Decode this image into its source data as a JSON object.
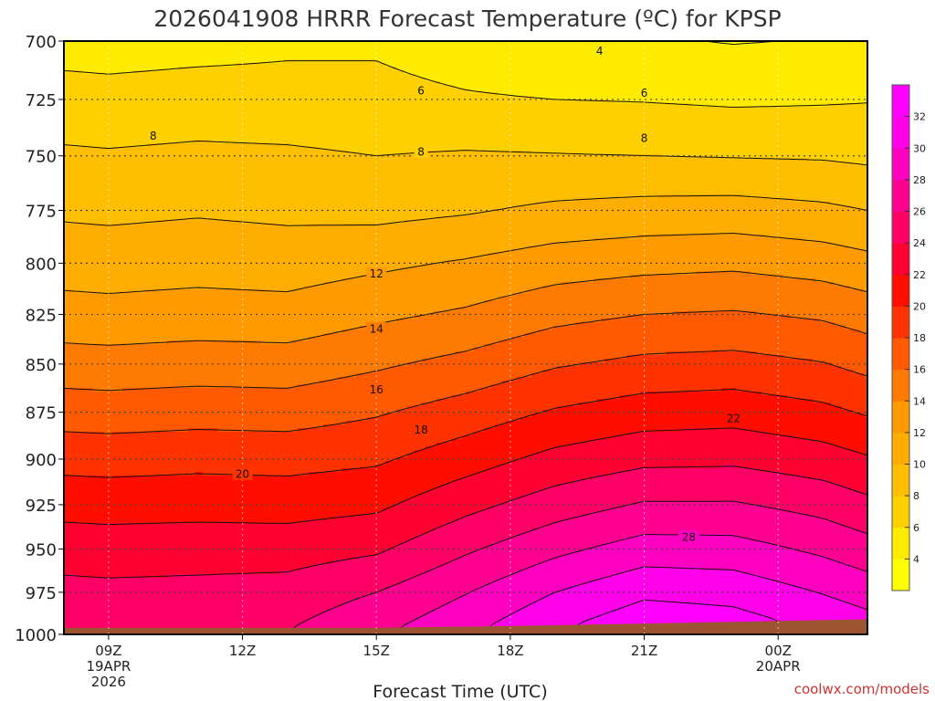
{
  "chart_data": {
    "type": "heatmap",
    "title": "2026041908 HRRR Forecast Temperature (ºC) for KPSP",
    "xlabel": "Forecast Time (UTC)",
    "ylabel": "",
    "credit": "coolwx.com/models",
    "y_scale": "log-pressure",
    "y_ticks": [
      "700",
      "725",
      "750",
      "775",
      "800",
      "825",
      "850",
      "875",
      "900",
      "925",
      "950",
      "975",
      "1000"
    ],
    "y_values": [
      700,
      725,
      750,
      775,
      800,
      825,
      850,
      875,
      900,
      925,
      950,
      975,
      1000
    ],
    "ylim": [
      1000,
      700
    ],
    "x_ticks": [
      {
        "hour": 9,
        "lines": [
          "09Z",
          "19APR",
          "2026"
        ]
      },
      {
        "hour": 12,
        "lines": [
          "12Z"
        ]
      },
      {
        "hour": 15,
        "lines": [
          "15Z"
        ]
      },
      {
        "hour": 18,
        "lines": [
          "18Z"
        ]
      },
      {
        "hour": 21,
        "lines": [
          "21Z"
        ]
      },
      {
        "hour": 24,
        "lines": [
          "00Z",
          "20APR"
        ]
      }
    ],
    "xlim": [
      8,
      26
    ],
    "grid": true,
    "colorbar_ticks": [
      "4",
      "6",
      "8",
      "10",
      "12",
      "14",
      "16",
      "18",
      "20",
      "22",
      "24",
      "26",
      "28",
      "30",
      "32"
    ],
    "colorbar_levels": [
      2,
      4,
      6,
      8,
      10,
      12,
      14,
      16,
      18,
      20,
      22,
      24,
      26,
      28,
      30,
      32,
      34
    ],
    "colors": [
      "#ffff00",
      "#ffeb00",
      "#ffd000",
      "#ffbf00",
      "#ffad00",
      "#ff9a00",
      "#ff7a00",
      "#ff5a00",
      "#ff3300",
      "#ff0e00",
      "#ff0030",
      "#ff0066",
      "#ff0090",
      "#ff00c0",
      "#ff00e8",
      "#ff00ff"
    ],
    "ground_color": "#9c5530",
    "surface_pressure": [
      {
        "t": 8,
        "p": 996
      },
      {
        "t": 15,
        "p": 996
      },
      {
        "t": 18,
        "p": 995
      },
      {
        "t": 22,
        "p": 993
      },
      {
        "t": 26,
        "p": 991
      }
    ],
    "contour_labels": [
      {
        "value": "4",
        "t": 20.0,
        "p": 704
      },
      {
        "value": "6",
        "t": 16.0,
        "p": 721
      },
      {
        "value": "6",
        "t": 21.0,
        "p": 722
      },
      {
        "value": "8",
        "t": 10.0,
        "p": 741
      },
      {
        "value": "8",
        "t": 16.0,
        "p": 748
      },
      {
        "value": "8",
        "t": 21.0,
        "p": 742
      },
      {
        "value": "12",
        "t": 15.0,
        "p": 805
      },
      {
        "value": "14",
        "t": 15.0,
        "p": 832
      },
      {
        "value": "16",
        "t": 15.0,
        "p": 863
      },
      {
        "value": "18",
        "t": 16.0,
        "p": 884
      },
      {
        "value": "20",
        "t": 12.0,
        "p": 908
      },
      {
        "value": "22",
        "t": 23.0,
        "p": 878
      },
      {
        "value": "28",
        "t": 22.0,
        "p": 943
      }
    ],
    "temperature_profiles": [
      {
        "t": 8,
        "p": [
          700,
          725,
          750,
          775,
          800,
          825,
          850,
          875,
          900,
          925,
          950,
          975,
          996
        ],
        "temp": [
          5.2,
          6.8,
          8.3,
          9.7,
          11.1,
          12.8,
          14.9,
          17.1,
          19.3,
          21.3,
          23.1,
          24.6,
          25.5
        ]
      },
      {
        "t": 9,
        "p": [
          700,
          725,
          750,
          775,
          800,
          825,
          850,
          875,
          900,
          925,
          950,
          975,
          996
        ],
        "temp": [
          5.1,
          6.7,
          8.2,
          9.6,
          11.0,
          12.7,
          14.8,
          17.0,
          19.2,
          21.2,
          23.0,
          24.5,
          25.4
        ]
      },
      {
        "t": 11,
        "p": [
          700,
          725,
          750,
          775,
          800,
          825,
          850,
          875,
          900,
          925,
          950,
          975,
          996
        ],
        "temp": [
          5.3,
          6.9,
          8.4,
          9.8,
          11.2,
          12.9,
          15.0,
          17.2,
          19.4,
          21.3,
          23.1,
          24.6,
          25.5
        ]
      },
      {
        "t": 13,
        "p": [
          700,
          725,
          750,
          775,
          800,
          825,
          850,
          875,
          900,
          925,
          950,
          975,
          996
        ],
        "temp": [
          5.6,
          6.8,
          8.3,
          9.6,
          11.0,
          12.8,
          14.9,
          17.1,
          19.3,
          21.2,
          23.1,
          24.8,
          25.9
        ]
      },
      {
        "t": 15,
        "p": [
          700,
          725,
          750,
          775,
          800,
          825,
          850,
          875,
          900,
          925,
          950,
          975,
          996
        ],
        "temp": [
          5.7,
          6.6,
          8.0,
          9.4,
          11.6,
          13.6,
          15.7,
          17.8,
          19.7,
          21.6,
          23.7,
          26.0,
          27.5
        ]
      },
      {
        "t": 17,
        "p": [
          700,
          725,
          750,
          775,
          800,
          825,
          850,
          875,
          900,
          925,
          950,
          975,
          995
        ],
        "temp": [
          5.0,
          6.2,
          8.2,
          9.8,
          12.2,
          14.3,
          16.6,
          18.9,
          21.1,
          23.4,
          25.7,
          27.9,
          29.4
        ]
      },
      {
        "t": 19,
        "p": [
          700,
          725,
          750,
          775,
          800,
          825,
          850,
          875,
          900,
          925,
          950,
          975,
          994
        ],
        "temp": [
          4.4,
          6.0,
          8.1,
          10.4,
          13.0,
          15.4,
          17.8,
          20.2,
          22.6,
          25.0,
          27.5,
          30.0,
          31.6
        ]
      },
      {
        "t": 21,
        "p": [
          700,
          725,
          750,
          775,
          800,
          825,
          850,
          875,
          900,
          925,
          950,
          975,
          993
        ],
        "temp": [
          4.2,
          5.9,
          8.0,
          10.7,
          13.4,
          16.0,
          18.5,
          21.0,
          23.5,
          26.2,
          28.9,
          31.6,
          33.2
        ]
      },
      {
        "t": 23,
        "p": [
          700,
          725,
          750,
          775,
          800,
          825,
          850,
          875,
          900,
          925,
          950,
          975,
          992
        ],
        "temp": [
          3.9,
          5.7,
          7.9,
          10.8,
          13.6,
          16.2,
          18.7,
          21.2,
          23.6,
          26.2,
          28.8,
          31.3,
          32.7
        ]
      },
      {
        "t": 25,
        "p": [
          700,
          725,
          750,
          775,
          800,
          825,
          850,
          875,
          900,
          925,
          950,
          975,
          991
        ],
        "temp": [
          4.1,
          5.8,
          7.8,
          10.4,
          13.1,
          15.7,
          18.1,
          20.5,
          22.9,
          25.3,
          27.6,
          29.9,
          31.3
        ]
      },
      {
        "t": 26,
        "p": [
          700,
          725,
          750,
          775,
          800,
          825,
          850,
          875,
          900,
          925,
          950,
          975,
          991
        ],
        "temp": [
          4.3,
          5.9,
          7.6,
          10.0,
          12.6,
          15.1,
          17.4,
          19.8,
          22.2,
          24.5,
          26.8,
          29.1,
          30.5
        ]
      }
    ]
  }
}
